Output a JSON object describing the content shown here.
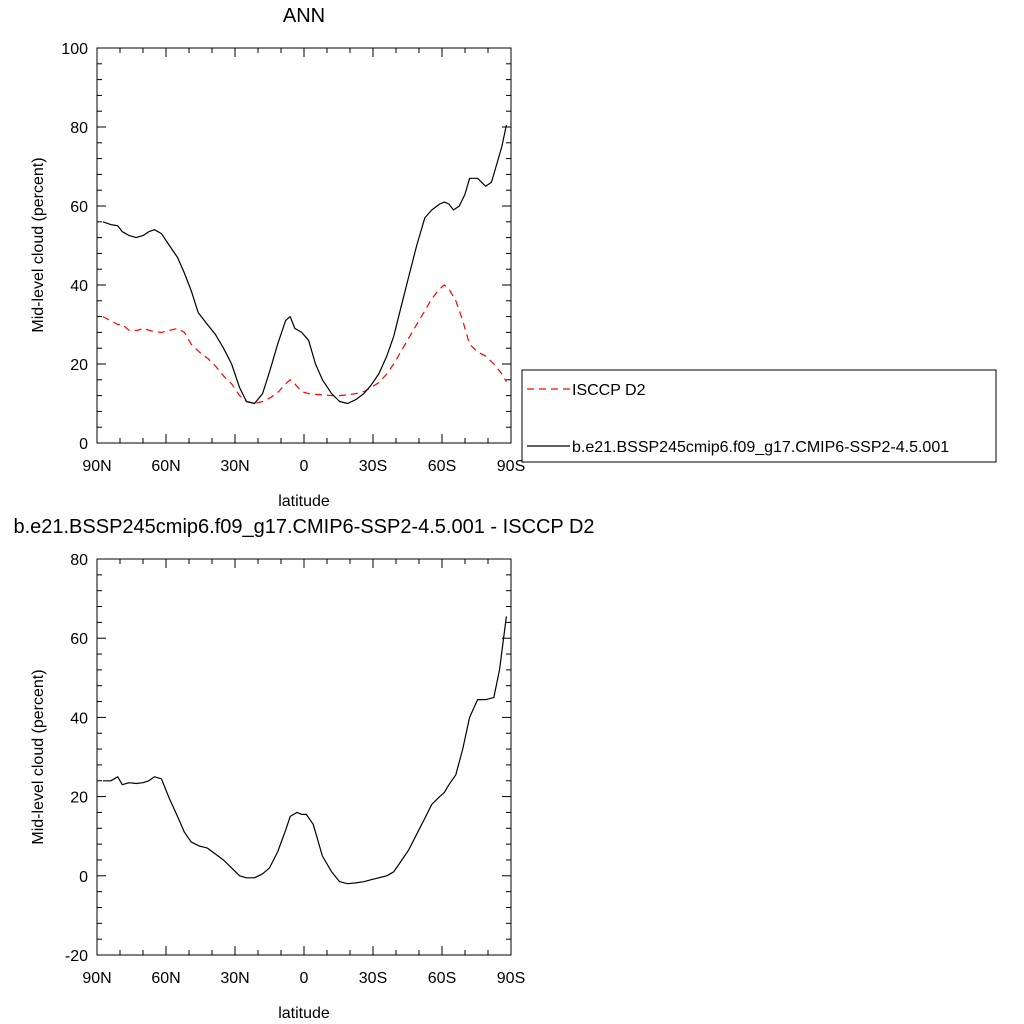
{
  "chart_data": [
    {
      "type": "line",
      "title": "ANN",
      "xlabel": "latitude",
      "ylabel": "Mid-level cloud (percent)",
      "xlim": [
        -90,
        90
      ],
      "ylim": [
        0,
        100
      ],
      "xticks": [
        -90,
        -60,
        -30,
        0,
        30,
        60,
        90
      ],
      "xtick_labels": [
        "90N",
        "60N",
        "30N",
        "0",
        "30S",
        "60S",
        "90S"
      ],
      "yticks": [
        0,
        20,
        40,
        60,
        80,
        100
      ],
      "ytick_labels": [
        "0",
        "20",
        "40",
        "60",
        "80",
        "100"
      ],
      "legend": {
        "position": "right",
        "entries": [
          "ISCCP D2",
          "b.e21.BSSP245cmip6.f09_g17.CMIP6-SSP2-4.5.001"
        ]
      },
      "series": [
        {
          "name": "ISCCP D2",
          "color": "#ff0000",
          "dash": "dashed",
          "x": [
            -87.5,
            -84,
            -81,
            -79,
            -76,
            -72.5,
            -70,
            -66,
            -62,
            -58.5,
            -55,
            -52,
            -49,
            -45.5,
            -42,
            -38.5,
            -35,
            -31.5,
            -28,
            -25,
            -21.5,
            -18,
            -14.5,
            -11,
            -8,
            -6,
            -4,
            -1,
            2,
            5,
            8,
            12,
            15.5,
            19,
            22.5,
            26,
            29,
            32.5,
            36,
            39,
            42,
            45.5,
            49,
            52.5,
            55.5,
            59,
            61,
            63,
            66,
            69,
            72,
            75.5,
            79,
            82.5,
            86,
            88
          ],
          "y": [
            32,
            31,
            30,
            30,
            28.5,
            28.5,
            29,
            28.3,
            28,
            28.5,
            29,
            28,
            25,
            23,
            21.5,
            19.5,
            17,
            15,
            12,
            10.5,
            10,
            10.5,
            11.5,
            13,
            15,
            16,
            15,
            13,
            12.5,
            12.3,
            12.2,
            12,
            12,
            12.2,
            12.5,
            13,
            14,
            15.3,
            17.5,
            20,
            23,
            26.5,
            30,
            33.5,
            36.5,
            39,
            40,
            39,
            36,
            31,
            25,
            23,
            22,
            20,
            17.5,
            15.5
          ]
        },
        {
          "name": "b.e21.BSSP245cmip6.f09_g17.CMIP6-SSP2-4.5.001",
          "color": "#000000",
          "dash": "solid",
          "x": [
            -87.5,
            -84,
            -81,
            -79,
            -76,
            -73,
            -70,
            -67.5,
            -65,
            -62,
            -58.5,
            -55,
            -52,
            -49,
            -46,
            -42,
            -38.5,
            -35,
            -31.5,
            -28,
            -25,
            -21.5,
            -18,
            -15,
            -11.5,
            -8,
            -6,
            -4,
            -1,
            2,
            5,
            8,
            12,
            15.5,
            19,
            22.5,
            26,
            29,
            32.5,
            36,
            39,
            42,
            45.5,
            49,
            52.5,
            55.5,
            59,
            61,
            63,
            65,
            67.5,
            70,
            72,
            75.5,
            79,
            81.5,
            83,
            86,
            88
          ],
          "y": [
            56,
            55.3,
            55,
            53.5,
            52.5,
            52,
            52.5,
            53.5,
            54,
            53,
            50,
            47,
            43,
            38.5,
            33,
            30,
            27.5,
            24,
            20,
            14,
            10.5,
            10,
            12.5,
            18,
            25,
            31,
            32,
            29,
            28,
            26,
            20,
            16,
            12.5,
            10.5,
            10,
            11,
            12.5,
            14.5,
            17.5,
            22,
            27,
            34,
            42,
            50,
            57,
            59,
            60.5,
            61,
            60.5,
            59,
            60,
            63,
            67,
            67,
            65,
            66,
            69,
            75,
            80.5
          ]
        }
      ]
    },
    {
      "type": "line",
      "title": "b.e21.BSSP245cmip6.f09_g17.CMIP6-SSP2-4.5.001 - ISCCP D2",
      "xlabel": "latitude",
      "ylabel": "Mid-level cloud (percent)",
      "xlim": [
        -90,
        90
      ],
      "ylim": [
        -20,
        80
      ],
      "xticks": [
        -90,
        -60,
        -30,
        0,
        30,
        60,
        90
      ],
      "xtick_labels": [
        "90N",
        "60N",
        "30N",
        "0",
        "30S",
        "60S",
        "90S"
      ],
      "yticks": [
        -20,
        0,
        20,
        40,
        60,
        80
      ],
      "ytick_labels": [
        "-20",
        "0",
        "20",
        "40",
        "60",
        "80"
      ],
      "series": [
        {
          "color": "#000000",
          "dash": "solid",
          "x": [
            -87.5,
            -84,
            -81,
            -79,
            -76,
            -73,
            -70,
            -67.5,
            -65,
            -62,
            -58.5,
            -55,
            -52,
            -49,
            -45.5,
            -42,
            -38.5,
            -35,
            -31.5,
            -28,
            -25,
            -21.5,
            -18,
            -15,
            -11.5,
            -8,
            -6,
            -3,
            -1,
            1,
            4,
            8,
            12,
            15.5,
            19,
            22.5,
            26,
            29,
            32.5,
            36,
            39,
            42,
            45.5,
            49,
            52.5,
            55.5,
            59,
            61,
            63,
            66,
            69,
            72,
            75.5,
            79,
            82.5,
            85,
            88
          ],
          "y": [
            24,
            24,
            25,
            23,
            23.5,
            23.3,
            23.5,
            24,
            25,
            24.5,
            19.5,
            15,
            11,
            8.5,
            7.5,
            7,
            5.5,
            4,
            2,
            0,
            -0.5,
            -0.5,
            0.5,
            2,
            6,
            11.5,
            15,
            16,
            15.5,
            15.5,
            13,
            5,
            1,
            -1.5,
            -2,
            -1.8,
            -1.5,
            -1,
            -0.5,
            0,
            1,
            3.5,
            6.5,
            10.5,
            14.5,
            18,
            20,
            21,
            23,
            25.5,
            32,
            40,
            44.5,
            44.5,
            45,
            52,
            65.5
          ]
        }
      ]
    }
  ]
}
